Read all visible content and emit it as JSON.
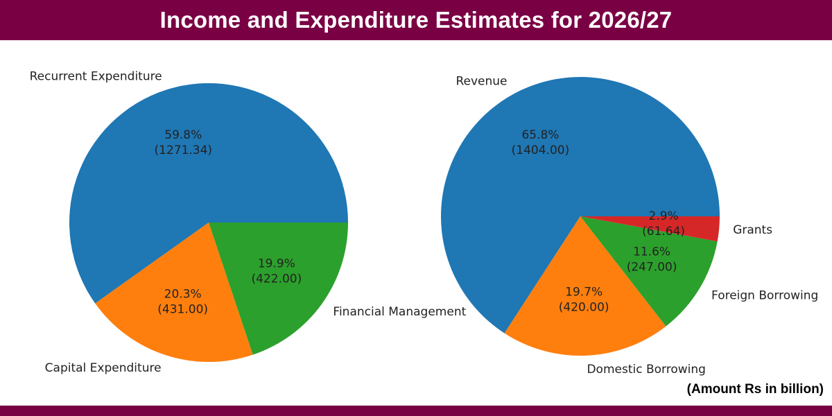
{
  "header": {
    "title": "Income and Expenditure Estimates for 2026/27"
  },
  "footer": {
    "unit_note": "(Amount Rs in billion)"
  },
  "theme": {
    "banner_color": "#7a0044"
  },
  "chart_data": [
    {
      "type": "pie",
      "categories": [
        "Recurrent Expenditure",
        "Capital Expenditure",
        "Financial Management"
      ],
      "values": [
        1271.34,
        431.0,
        422.0
      ],
      "percent_labels": [
        "59.8%",
        "20.3%",
        "19.9%"
      ],
      "value_labels": [
        "(1271.34)",
        "(431.00)",
        "(422.00)"
      ],
      "colors": [
        "#1f77b4",
        "#ff7f0e",
        "#2ca02c"
      ],
      "start_angle_deg": 0,
      "direction": "counterclockwise"
    },
    {
      "type": "pie",
      "categories": [
        "Revenue",
        "Domestic Borrowing",
        "Foreign Borrowing",
        "Grants"
      ],
      "values": [
        1404.0,
        420.0,
        247.0,
        61.64
      ],
      "percent_labels": [
        "65.8%",
        "19.7%",
        "11.6%",
        "2.9%"
      ],
      "value_labels": [
        "(1404.00)",
        "(420.00)",
        "(247.00)",
        "(61.64)"
      ],
      "colors": [
        "#1f77b4",
        "#ff7f0e",
        "#2ca02c",
        "#d62728"
      ],
      "start_angle_deg": 0,
      "direction": "counterclockwise"
    }
  ]
}
